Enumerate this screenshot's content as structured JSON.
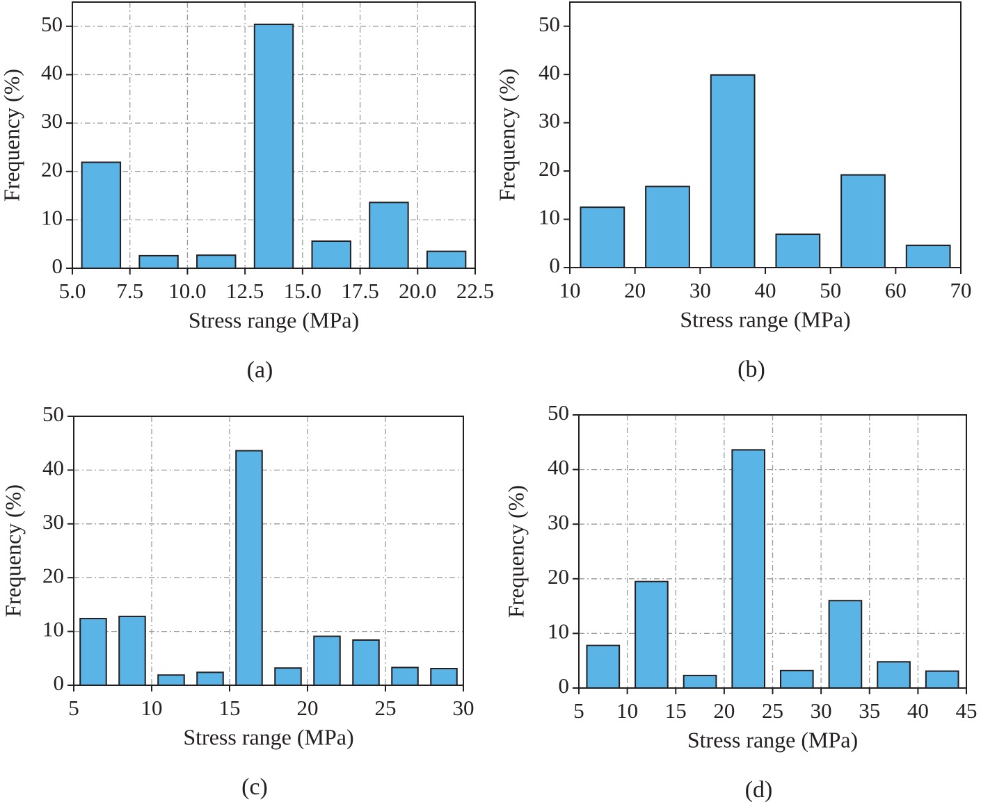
{
  "chart_data": [
    {
      "type": "bar",
      "caption": "(a)",
      "xlabel": "Stress range (MPa)",
      "ylabel": "Frequency (%)",
      "color": "#5ab4e5",
      "grid": true,
      "x": [
        6.25,
        8.75,
        11.25,
        13.75,
        16.25,
        18.75,
        21.25
      ],
      "values": [
        21.9,
        2.6,
        2.7,
        50.4,
        5.6,
        13.6,
        3.5
      ],
      "xlim": [
        5,
        22.5
      ],
      "xticks": [
        {
          "value": 5,
          "label": "5.0"
        },
        7.5,
        {
          "value": 10,
          "label": "10.0"
        },
        12.5,
        {
          "value": 15,
          "label": "15.0"
        },
        17.5,
        {
          "value": 20,
          "label": "20.0"
        },
        22.5
      ],
      "ylim": [
        0,
        55
      ],
      "yticks": [
        0,
        10,
        20,
        30,
        40,
        50
      ]
    },
    {
      "type": "bar",
      "caption": "(b)",
      "xlabel": "Stress range (MPa)",
      "ylabel": "Frequency (%)",
      "color": "#5ab4e5",
      "grid": false,
      "x": [
        15,
        25,
        35,
        45,
        55,
        65
      ],
      "values": [
        12.5,
        16.8,
        39.9,
        6.9,
        19.2,
        4.6
      ],
      "xlim": [
        10,
        70
      ],
      "xticks": [
        10,
        20,
        30,
        40,
        50,
        60,
        70
      ],
      "ylim": [
        0,
        55
      ],
      "yticks": [
        0,
        10,
        20,
        30,
        40,
        50
      ]
    },
    {
      "type": "bar",
      "caption": "(c)",
      "xlabel": "Stress range (MPa)",
      "ylabel": "Frequency (%)",
      "color": "#5ab4e5",
      "grid": true,
      "x": [
        6.25,
        8.75,
        11.25,
        13.75,
        16.25,
        18.75,
        21.25,
        23.75,
        26.25,
        28.75
      ],
      "values": [
        12.4,
        12.8,
        1.9,
        2.4,
        43.6,
        3.2,
        9.1,
        8.4,
        3.3,
        3.1
      ],
      "xlim": [
        5,
        30
      ],
      "xticks": [
        5,
        10,
        15,
        20,
        25,
        30
      ],
      "ylim": [
        0,
        50
      ],
      "yticks": [
        0,
        10,
        20,
        30,
        40,
        50
      ]
    },
    {
      "type": "bar",
      "caption": "(d)",
      "xlabel": "Stress range (MPa)",
      "ylabel": "Frequency (%)",
      "color": "#5ab4e5",
      "grid": true,
      "x": [
        7.5,
        12.5,
        17.5,
        22.5,
        27.5,
        32.5,
        37.5,
        42.5
      ],
      "values": [
        7.8,
        19.5,
        2.3,
        43.6,
        3.2,
        16.0,
        4.8,
        3.1
      ],
      "xlim": [
        5,
        45
      ],
      "xticks": [
        5,
        10,
        15,
        20,
        25,
        30,
        35,
        40,
        45
      ],
      "ylim": [
        0,
        50
      ],
      "yticks": [
        0,
        10,
        20,
        30,
        40,
        50
      ]
    }
  ]
}
